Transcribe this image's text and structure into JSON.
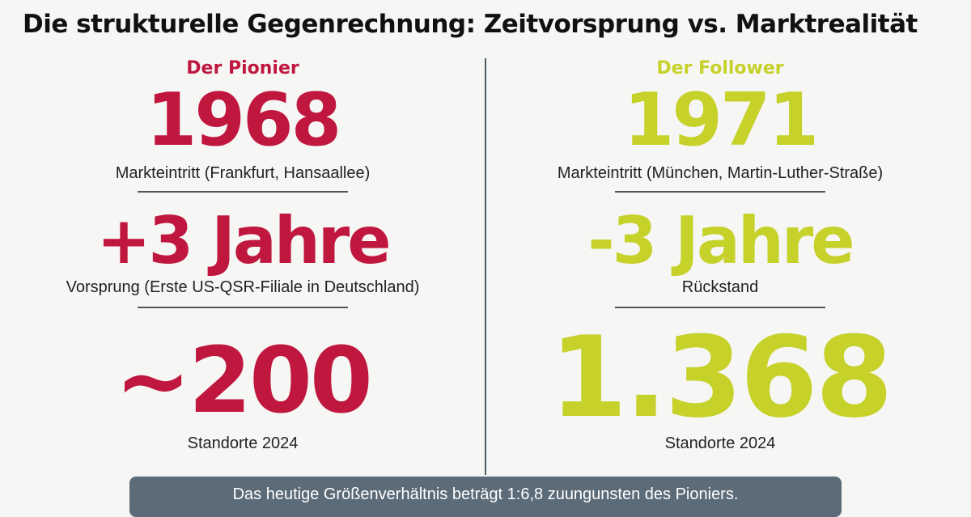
{
  "title": "Die strukturelle Gegenrechnung: Zeitvorsprung vs. Marktrealität",
  "left": {
    "heading": "Der Pionier",
    "stats": [
      {
        "value": "1968",
        "label": "Markteintritt (Frankfurt, Hansaallee)"
      },
      {
        "value": "+3 Jahre",
        "label": "Vorsprung (Erste US-QSR-Filiale in Deutschland)"
      },
      {
        "value": "~200",
        "label": "Standorte 2024"
      }
    ]
  },
  "right": {
    "heading": "Der Follower",
    "stats": [
      {
        "value": "1971",
        "label": "Markteintritt (München, Martin-Luther-Straße)"
      },
      {
        "value": "-3 Jahre",
        "label": "Rückstand"
      },
      {
        "value": "1.368",
        "label": "Standorte 2024"
      }
    ]
  },
  "footer": "Das heutige Größenverhältnis beträgt 1:6,8 zuungunsten des Pioniers."
}
